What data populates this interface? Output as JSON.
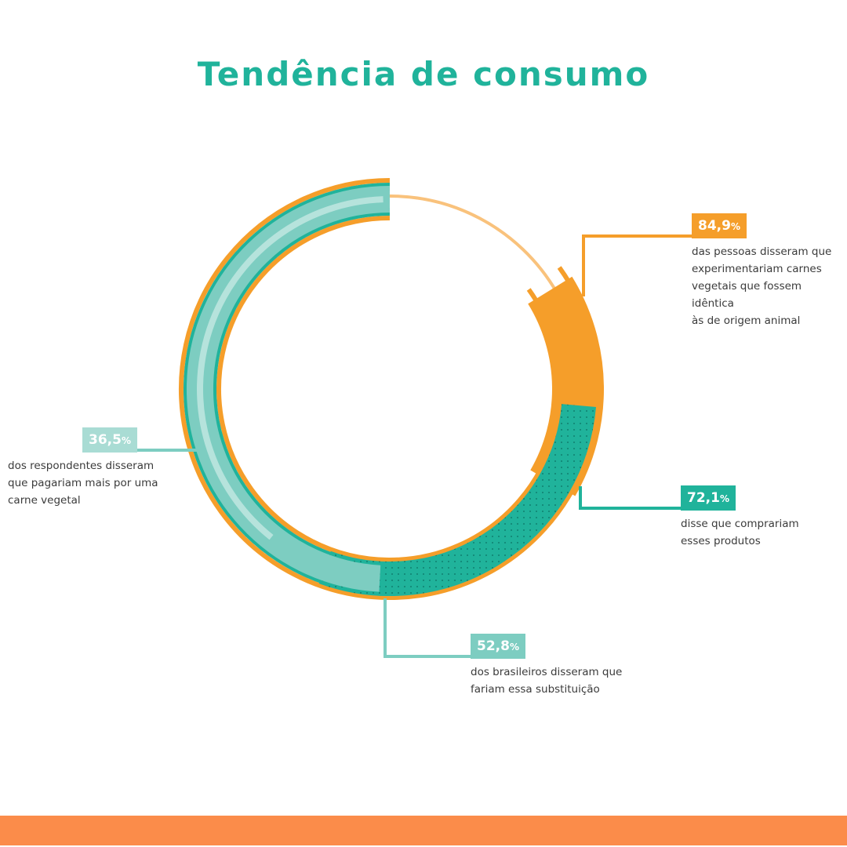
{
  "title": "Tendência de consumo",
  "colors": {
    "title": "#20b39b",
    "orange": "#f59e2a",
    "orange_light": "#f9c27c",
    "teal": "#20b39b",
    "teal_light": "#7dcdc1",
    "teal_pale": "#b6e3dc",
    "footer": "#fb8c4a"
  },
  "chart_data": {
    "type": "donut",
    "series": [
      {
        "value": 84.9,
        "label": "84,9",
        "unit": "%",
        "text": "das pessoas disseram que\nexperimentariam carnes\nvegetais que fossem idêntica\nàs de origem animal",
        "color": "#f59e2a"
      },
      {
        "value": 72.1,
        "label": "72,1",
        "unit": "%",
        "text": "disse que comprariam\nesses produtos",
        "color": "#20b39b"
      },
      {
        "value": 52.8,
        "label": "52,8",
        "unit": "%",
        "text": "dos brasileiros disseram que\nfariam essa substituição",
        "color": "#7dcdc1"
      },
      {
        "value": 36.5,
        "label": "36,5",
        "unit": "%",
        "text": "dos respondentes disseram\nque pagariam mais por uma\ncarne vegetal",
        "color": "#b6e3dc"
      }
    ]
  }
}
